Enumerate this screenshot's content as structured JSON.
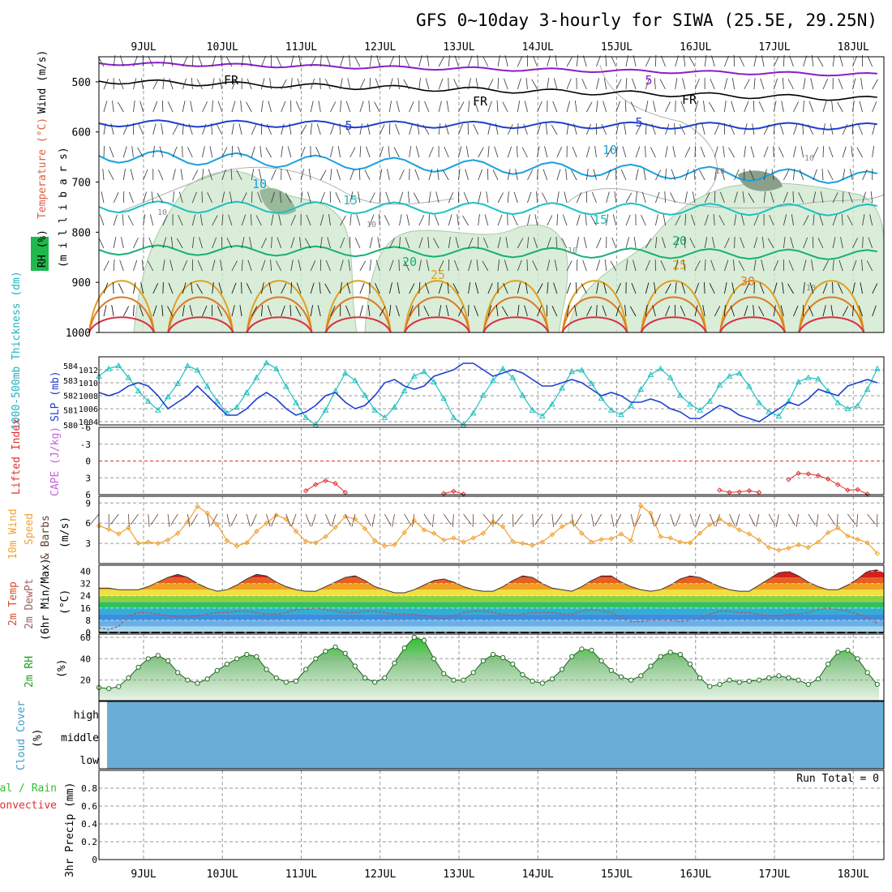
{
  "title": "GFS 0~10day 3-hourly for SIWA (25.5E, 29.25N)",
  "date_labels": [
    "9JUL",
    "10JUL",
    "11JUL",
    "12JUL",
    "13JUL",
    "14JUL",
    "15JUL",
    "16JUL",
    "17JUL",
    "18JUL"
  ],
  "colors": {
    "grid": "#9a9a9a",
    "frame": "#000000",
    "temp_purple": "#8a1ec8",
    "temp_blue": "#1f3fd0",
    "temp_lightblue": "#1aa0e0",
    "temp_cyan": "#1ec0c0",
    "temp_green": "#18b070",
    "temp_orange": "#e0a020",
    "temp_darkorange": "#e07820",
    "temp_red": "#d83040",
    "rh_fill": "#cfe8cf",
    "rh_dark": "#7aa07a",
    "thickness": "#20c0c0",
    "slp": "#1e40d0",
    "li": "#e03030",
    "cape_axis": "#c860e0",
    "wind10m": "#f0a030",
    "barb": "#604030",
    "rh2m": "#20a020",
    "dewpt": "#a06060",
    "cloud": "#6aaed8",
    "precip_label_total": "#30c030",
    "precip_label_conv": "#e03030"
  },
  "panels": {
    "upper": {
      "ylabel_wind": "Wind (m/s)",
      "ylabel_temp": "Temperature (°C)",
      "ylabel_rh": "RH (%)",
      "ylabel_units": "(m i l l i b a r s)",
      "yticks": [
        "500",
        "600",
        "700",
        "800",
        "900",
        "1000"
      ],
      "contour_labels": [
        "FR",
        "FR",
        "FR",
        "5",
        "5",
        "5",
        "10",
        "10",
        "15",
        "15",
        "20",
        "20",
        "25",
        "25",
        "30"
      ],
      "rh_labels": [
        "10",
        "10",
        "10",
        "10",
        "10",
        "10"
      ]
    },
    "thickness_slp": {
      "ylabel_left": "1000-500mb Thickness (dm)",
      "ylabel_right": "SLP (mb)",
      "yticks_thick": [
        "584",
        "583",
        "582",
        "581",
        "580"
      ],
      "yticks_slp": [
        "1012",
        "1010",
        "1008",
        "1006",
        "1004"
      ]
    },
    "li_cape": {
      "ylabel_li": "Lifted Index",
      "ylabel_cape": "CAPE (J/kg)",
      "yticks": [
        "-6",
        "-3",
        "0",
        "3",
        "6"
      ]
    },
    "wind10m": {
      "ylabel": "10m Wind",
      "ylabel2": "Speed",
      "ylabel3": "& Barbs",
      "units": "(m/s)",
      "yticks": [
        "9",
        "6",
        "3"
      ]
    },
    "temp2m": {
      "ylabel1": "2m Temp",
      "ylabel2": "2m DewPt",
      "ylabel3": "(6hr Min/Max)",
      "units": "(°C)",
      "yticks": [
        "40",
        "32",
        "24",
        "16",
        "8",
        "0"
      ]
    },
    "rh2m": {
      "ylabel": "2m RH",
      "units": "(%)",
      "yticks": [
        "60",
        "40",
        "20"
      ]
    },
    "cloud": {
      "ylabel": "Cloud Cover",
      "units": "(%)",
      "levels": [
        "high",
        "middle",
        "low"
      ]
    },
    "precip": {
      "ylabel_total": "Total / Rain",
      "ylabel_conv": "Convective",
      "ylabel_main": "3hr Precip (mm)",
      "yticks": [
        "0.8",
        "0.6",
        "0.4",
        "0.2",
        "0"
      ],
      "run_total": "Run Total = 0"
    }
  },
  "chart_data": [
    {
      "type": "line",
      "title": "1000-500mb Thickness (dm) / SLP (mb)",
      "x_unit": "hours from 8JUL 12Z (3-hourly)",
      "series": [
        {
          "name": "Thickness (dm)",
          "values": [
            583.3,
            583.8,
            584.0,
            583.2,
            582.3,
            581.6,
            581.0,
            581.9,
            582.8,
            584.0,
            583.7,
            582.6,
            581.6,
            580.8,
            581.2,
            582.2,
            583.2,
            584.2,
            583.8,
            582.6,
            581.5,
            580.5,
            580.0,
            581.0,
            582.3,
            583.5,
            583.0,
            582.0,
            581.0,
            580.5,
            581.2,
            582.3,
            583.3,
            583.6,
            582.9,
            581.8,
            580.5,
            580.0,
            580.8,
            582.0,
            583.0,
            583.8,
            583.2,
            582.0,
            581.0,
            580.6,
            581.4,
            582.5,
            583.6,
            583.7,
            582.8,
            581.8,
            581.0,
            580.7,
            581.3,
            582.4,
            583.4,
            583.8,
            583.2,
            582.0,
            581.4,
            581.0,
            581.6,
            582.7,
            583.3,
            583.5,
            582.6,
            581.5,
            580.9,
            580.6,
            581.6,
            582.9,
            583.2,
            583.1,
            582.3,
            581.5,
            581.1,
            581.3,
            582.4,
            583.8,
            584.0,
            583.6,
            582.9
          ]
        },
        {
          "name": "SLP (mb)",
          "values": [
            1008.5,
            1008.0,
            1008.5,
            1009.5,
            1010.0,
            1009.5,
            1008.0,
            1006.0,
            1007.0,
            1008.0,
            1009.5,
            1008.0,
            1006.5,
            1005.0,
            1005.0,
            1006.0,
            1007.5,
            1008.5,
            1007.5,
            1006.0,
            1005.0,
            1005.5,
            1006.5,
            1008.0,
            1008.5,
            1007.0,
            1006.0,
            1006.5,
            1008.0,
            1010.0,
            1010.5,
            1009.5,
            1009.0,
            1009.5,
            1011.0,
            1011.5,
            1012.0,
            1013.0,
            1013.0,
            1012.0,
            1011.0,
            1011.5,
            1012.0,
            1011.5,
            1010.5,
            1009.5,
            1009.5,
            1010.0,
            1010.5,
            1010.0,
            1009.0,
            1008.0,
            1008.5,
            1008.0,
            1007.0,
            1007.0,
            1007.5,
            1007.0,
            1006.0,
            1005.5,
            1004.5,
            1004.5,
            1005.5,
            1006.5,
            1006.0,
            1005.0,
            1004.5,
            1004.0,
            1005.0,
            1006.0,
            1007.0,
            1006.5,
            1007.5,
            1009.0,
            1008.5,
            1008.0,
            1009.5,
            1010.0,
            1010.5,
            1010.0,
            1010.5,
            1011.0,
            1012.0
          ]
        }
      ],
      "ylim_thickness": [
        580,
        584.6
      ],
      "ylim_slp": [
        1003.5,
        1014
      ]
    },
    {
      "type": "line",
      "title": "Lifted Index",
      "series": [
        {
          "name": "Lifted Index",
          "segments": [
            {
              "start": 21,
              "values": [
                5.3,
                4.2,
                3.5,
                4.0,
                5.6
              ]
            },
            {
              "start": 35,
              "values": [
                5.8,
                5.4,
                5.9
              ]
            },
            {
              "start": 63,
              "values": [
                5.2,
                5.6,
                5.5,
                5.3,
                5.6
              ]
            },
            {
              "start": 70,
              "values": [
                3.3,
                2.2,
                2.3,
                2.6,
                3.2,
                4.2,
                5.2,
                5.1,
                5.9
              ]
            },
            {
              "start": 81,
              "values": [
                5.4,
                6.0
              ]
            }
          ]
        }
      ],
      "ylim": [
        6,
        -6
      ]
    },
    {
      "type": "line",
      "title": "10m Wind Speed (m/s)",
      "series": [
        {
          "name": "10m Wind Speed",
          "values": [
            5.6,
            5.1,
            4.4,
            5.3,
            3.0,
            3.2,
            3.0,
            3.5,
            4.5,
            6.2,
            8.5,
            7.5,
            5.8,
            3.4,
            2.6,
            3.1,
            4.8,
            6.0,
            7.2,
            6.6,
            4.8,
            3.3,
            3.1,
            4.0,
            5.4,
            7.0,
            6.6,
            5.2,
            3.4,
            2.6,
            2.8,
            4.6,
            6.4,
            5.0,
            4.5,
            3.5,
            3.8,
            3.2,
            3.8,
            4.5,
            6.2,
            5.5,
            3.3,
            3.0,
            2.7,
            3.2,
            4.3,
            5.5,
            6.2,
            4.5,
            3.2,
            3.6,
            3.7,
            4.4,
            3.4,
            8.6,
            7.5,
            4.0,
            3.8,
            3.2,
            3.1,
            4.5,
            5.8,
            6.6,
            5.8,
            5.0,
            4.4,
            3.5,
            2.4,
            2.0,
            2.3,
            2.8,
            2.4,
            3.2,
            4.6,
            5.3,
            4.1,
            3.6,
            3.1,
            1.5,
            1.2,
            2.5,
            3.4,
            3.6,
            3.1
          ]
        }
      ],
      "ylim": [
        0,
        10
      ]
    },
    {
      "type": "area",
      "title": "2m Temp / 2m DewPt (°C)",
      "series": [
        {
          "name": "2m Temp",
          "values": [
            29,
            29,
            28,
            28,
            28,
            30,
            33,
            36,
            38,
            36,
            32,
            29,
            27,
            28,
            31,
            35,
            38,
            37,
            33,
            30,
            28,
            27,
            27,
            30,
            33,
            36,
            37,
            34,
            30,
            28,
            26,
            26,
            28,
            31,
            34,
            35,
            33,
            30,
            28,
            27,
            27,
            30,
            34,
            37,
            36,
            32,
            29,
            28,
            27,
            30,
            34,
            37,
            37,
            33,
            30,
            28,
            27,
            28,
            31,
            35,
            37,
            36,
            33,
            30,
            28,
            27,
            27,
            31,
            35,
            39,
            40,
            37,
            33,
            30,
            28,
            28,
            31,
            35,
            40,
            41,
            39,
            35,
            32
          ]
        },
        {
          "name": "2m DewPt",
          "values": [
            3,
            2,
            4,
            11,
            13,
            13,
            12,
            11,
            10,
            10,
            11,
            12,
            13,
            13,
            14,
            14,
            13,
            12,
            12,
            13,
            15,
            15,
            16,
            15,
            14,
            13,
            13,
            14,
            14,
            13,
            12,
            12,
            12,
            11,
            10,
            9,
            11,
            13,
            14,
            14,
            13,
            12,
            11,
            12,
            13,
            13,
            13,
            12,
            12,
            14,
            15,
            14,
            13,
            10,
            7,
            7,
            8,
            8,
            8,
            7,
            8,
            9,
            12,
            14,
            14,
            13,
            13,
            12,
            11,
            11,
            12,
            12,
            13,
            15,
            16,
            15,
            14,
            12,
            10,
            6,
            5,
            12,
            13
          ]
        }
      ],
      "ylim": [
        0,
        44
      ]
    },
    {
      "type": "area",
      "title": "2m RH (%)",
      "series": [
        {
          "name": "2m RH",
          "values": [
            13,
            12,
            14,
            22,
            32,
            40,
            43,
            38,
            27,
            20,
            17,
            21,
            29,
            35,
            40,
            44,
            42,
            30,
            22,
            18,
            19,
            30,
            40,
            47,
            51,
            45,
            33,
            22,
            18,
            22,
            36,
            50,
            60,
            57,
            40,
            26,
            20,
            20,
            27,
            38,
            44,
            41,
            35,
            25,
            19,
            17,
            21,
            30,
            42,
            49,
            48,
            38,
            29,
            23,
            20,
            24,
            33,
            42,
            46,
            44,
            35,
            22,
            14,
            16,
            20,
            18,
            19,
            20,
            22,
            24,
            22,
            20,
            16,
            21,
            35,
            46,
            48,
            40,
            27,
            16,
            13,
            15,
            20,
            35,
            40,
            39,
            33
          ]
        }
      ],
      "ylim": [
        0,
        63
      ]
    },
    {
      "type": "bar",
      "title": "3hr Precip (mm)",
      "categories": [
        "Total / Rain",
        "Convective"
      ],
      "values": [
        0,
        0
      ],
      "ylim": [
        0,
        1.0
      ]
    }
  ]
}
